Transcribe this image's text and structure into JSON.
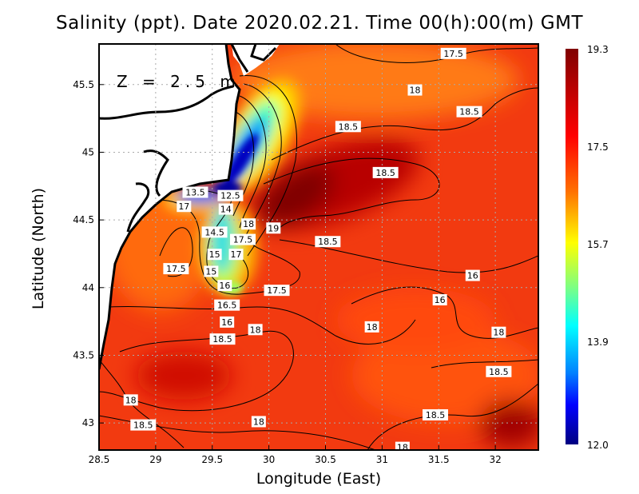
{
  "title": "Salinity (ppt). Date 2020.02.21. Time 00(h):00(m) GMT",
  "depth_label": "Z = 2.5 m",
  "chart_data": {
    "type": "heatmap",
    "title": "Salinity (ppt). Date 2020.02.21. Time 00(h):00(m) GMT",
    "xlabel": "Longitude (East)",
    "ylabel": "Latitude (North)",
    "xlim": [
      28.5,
      32.38
    ],
    "ylim": [
      42.8,
      45.8
    ],
    "x_ticks": [
      "28.5",
      "29",
      "29.5",
      "30",
      "30.5",
      "31",
      "31.5",
      "32"
    ],
    "y_ticks": [
      "43",
      "43.5",
      "44",
      "44.5",
      "45",
      "45.5"
    ],
    "grid": true,
    "colorbar": {
      "range": [
        12.0,
        19.3
      ],
      "ticks": [
        "19.3",
        "17.5",
        "15.7",
        "13.9",
        "12.0"
      ],
      "colormap": "jet",
      "colors": [
        "#800000",
        "#ff0000",
        "#ff8000",
        "#ffff00",
        "#80ff80",
        "#00ffff",
        "#0080ff",
        "#0000ff",
        "#000080"
      ]
    },
    "land_color": "#ffffff",
    "contour_labels": [
      {
        "text": "17.5",
        "lon": 31.63,
        "lat": 45.73
      },
      {
        "text": "18",
        "lon": 31.29,
        "lat": 45.46
      },
      {
        "text": "18.5",
        "lon": 31.77,
        "lat": 45.3
      },
      {
        "text": "18.5",
        "lon": 30.7,
        "lat": 45.19
      },
      {
        "text": "18.5",
        "lon": 31.03,
        "lat": 44.85
      },
      {
        "text": "12.5",
        "lon": 29.66,
        "lat": 44.68
      },
      {
        "text": "17",
        "lon": 29.25,
        "lat": 44.6
      },
      {
        "text": "13.5",
        "lon": 29.35,
        "lat": 44.61
      },
      {
        "text": "14",
        "lon": 29.62,
        "lat": 44.58
      },
      {
        "text": "18",
        "lon": 29.82,
        "lat": 44.47
      },
      {
        "text": "17.5",
        "lon": 29.77,
        "lat": 44.45
      },
      {
        "text": "19",
        "lon": 30.04,
        "lat": 44.44
      },
      {
        "text": "18.5",
        "lon": 30.52,
        "lat": 44.34
      },
      {
        "text": "14.5",
        "lon": 29.52,
        "lat": 44.41
      },
      {
        "text": "15",
        "lon": 29.52,
        "lat": 44.34
      },
      {
        "text": "17",
        "lon": 29.71,
        "lat": 44.34
      },
      {
        "text": "17.5",
        "lon": 29.18,
        "lat": 44.14
      },
      {
        "text": "15",
        "lon": 29.49,
        "lat": 44.12
      },
      {
        "text": "16",
        "lon": 29.61,
        "lat": 44.11
      },
      {
        "text": "16.5",
        "lon": 29.63,
        "lat": 44.06
      },
      {
        "text": "16",
        "lon": 31.8,
        "lat": 44.09
      },
      {
        "text": "17.5",
        "lon": 30.07,
        "lat": 43.98
      },
      {
        "text": "16",
        "lon": 29.63,
        "lat": 43.84
      },
      {
        "text": "16",
        "lon": 31.51,
        "lat": 43.91
      },
      {
        "text": "18",
        "lon": 29.88,
        "lat": 43.69
      },
      {
        "text": "18",
        "lon": 30.91,
        "lat": 43.71
      },
      {
        "text": "18",
        "lon": 32.03,
        "lat": 43.67
      },
      {
        "text": "18.5",
        "lon": 29.59,
        "lat": 43.62
      },
      {
        "text": "18.5",
        "lon": 32.03,
        "lat": 43.38
      },
      {
        "text": "18",
        "lon": 28.78,
        "lat": 43.17
      },
      {
        "text": "18.5",
        "lon": 28.89,
        "lat": 43.08
      },
      {
        "text": "18",
        "lon": 29.91,
        "lat": 43.01
      },
      {
        "text": "18.5",
        "lon": 31.47,
        "lat": 43.06
      },
      {
        "text": "18",
        "lon": 31.18,
        "lat": 42.82
      }
    ]
  }
}
